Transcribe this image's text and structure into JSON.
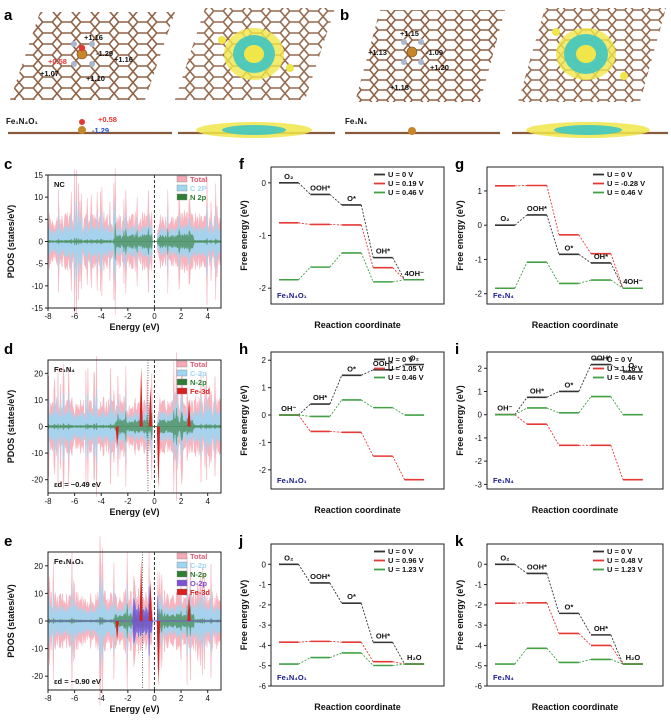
{
  "panels": {
    "a": {
      "letter": "a",
      "structure_label": "Fe₁N₄O₁",
      "charges": [
        "+1.16",
        "-1.29",
        "+1.16",
        "+0.58",
        "+1.07",
        "+1.10"
      ],
      "side_charges": [
        "+0.58",
        "-1.29"
      ]
    },
    "b": {
      "letter": "b",
      "structure_label": "Fe₁N₄",
      "charges": [
        "+1.15",
        "+1.13",
        "-1.09",
        "+1.20",
        "+1.18"
      ]
    }
  },
  "colors": {
    "total": "#f6a8b4",
    "c2p": "#9fd6f2",
    "n2p": "#2e7d32",
    "o2p": "#7b4fd6",
    "fe3d": "#d92020",
    "u0": "#333333",
    "u1": "#e53935",
    "u2": "#43a047",
    "atomC": "#8a5a3c",
    "atomN": "#a9b7cf",
    "atomFe": "#c8862a",
    "atomO": "#e53935",
    "density_yellow": "#f0e64a",
    "density_cyan": "#3fc7c2"
  },
  "chart_data": [
    {
      "id": "c",
      "type": "area",
      "letter": "c",
      "system": "NC",
      "legend": [
        "Total",
        "C 2P",
        "N 2p"
      ],
      "xlabel": "Energy (eV)",
      "ylabel": "PDOS (states/eV)",
      "xlim": [
        -8,
        5
      ],
      "ylim": [
        -15,
        15
      ],
      "xticks": [
        -8,
        -6,
        -4,
        -2,
        0,
        2,
        4
      ],
      "yticks": [
        15,
        10,
        5,
        0,
        -5,
        -10,
        -15
      ],
      "note": ""
    },
    {
      "id": "d",
      "type": "area",
      "letter": "d",
      "system": "Fe₁N₄",
      "legend": [
        "Total",
        "C-2p",
        "N-2p",
        "Fe-3d"
      ],
      "xlabel": "Energy (eV)",
      "ylabel": "PDOS (states/eV)",
      "xlim": [
        -8,
        5
      ],
      "ylim": [
        -25,
        25
      ],
      "xticks": [
        -8,
        -6,
        -4,
        -2,
        0,
        2,
        4
      ],
      "yticks": [
        20,
        10,
        0,
        -10,
        -20
      ],
      "note": "εd = −0.49 eV",
      "d_band_center": -0.49
    },
    {
      "id": "e",
      "type": "area",
      "letter": "e",
      "system": "Fe₁N₄O₁",
      "legend": [
        "Total",
        "C-2p",
        "N-2p",
        "O-2p",
        "Fe-3d"
      ],
      "xlabel": "Energy (eV)",
      "ylabel": "PDOS (states/eV)",
      "xlim": [
        -8,
        5
      ],
      "ylim": [
        -25,
        25
      ],
      "xticks": [
        -8,
        -6,
        -4,
        -2,
        0,
        2,
        4
      ],
      "yticks": [
        20,
        10,
        0,
        -10,
        -20
      ],
      "note": "εd = −0.90 eV",
      "d_band_center": -0.9
    },
    {
      "id": "f",
      "type": "line",
      "letter": "f",
      "system": "Fe₁N₄O₁",
      "xlabel": "Reaction coordinate",
      "ylabel": "Free energy (eV)",
      "ylim": [
        -2.3,
        0.3
      ],
      "yticks": [
        0,
        -1,
        -2
      ],
      "legend": [
        "U = 0 V",
        "U = 0.19 V",
        "U = 0.46 V"
      ],
      "labels": [
        "O₂",
        "OOH*",
        "O*",
        "OH*",
        "4OH⁻"
      ],
      "series": [
        {
          "name": "U = 0 V",
          "values": [
            0.0,
            -0.22,
            -0.42,
            -1.42,
            -1.84
          ]
        },
        {
          "name": "U = 0.19 V",
          "values": [
            -0.76,
            -0.79,
            -0.8,
            -1.61,
            -1.84
          ]
        },
        {
          "name": "U = 0.46 V",
          "values": [
            -1.84,
            -1.6,
            -1.33,
            -1.88,
            -1.84
          ]
        }
      ]
    },
    {
      "id": "g",
      "type": "line",
      "letter": "g",
      "system": "Fe₁N₄",
      "xlabel": "Reaction coordinate",
      "ylabel": "Free energy (eV)",
      "ylim": [
        -2.3,
        1.7
      ],
      "yticks": [
        1,
        0,
        -1,
        -2
      ],
      "legend": [
        "U = 0 V",
        "U = -0.28 V",
        "U = 0.46 V"
      ],
      "labels": [
        "O₂",
        "OOH*",
        "O*",
        "OH*",
        "4OH⁻"
      ],
      "series": [
        {
          "name": "U = 0 V",
          "values": [
            0.0,
            0.3,
            -0.85,
            -1.1,
            -1.84
          ]
        },
        {
          "name": "U = -0.28 V",
          "values": [
            1.15,
            1.16,
            -0.28,
            -0.83,
            -1.84
          ]
        },
        {
          "name": "U = 0.46 V",
          "values": [
            -1.84,
            -1.08,
            -1.7,
            -1.6,
            -1.84
          ]
        }
      ]
    },
    {
      "id": "h",
      "type": "line",
      "letter": "h",
      "system": "Fe₁N₄O₁",
      "xlabel": "Reaction coordinate",
      "ylabel": "Free energy (eV)",
      "ylim": [
        -2.7,
        2.3
      ],
      "yticks": [
        2,
        1,
        0,
        -1,
        -2
      ],
      "legend": [
        "U = 0 V",
        "U = 1.05 V",
        "U = 0.46 V"
      ],
      "labels": [
        "OH⁻",
        "OH*",
        "O*",
        "OOH*",
        "O₂"
      ],
      "series": [
        {
          "name": "U = 0 V",
          "values": [
            0.0,
            0.4,
            1.45,
            1.65,
            1.84
          ]
        },
        {
          "name": "U = 1.05 V",
          "values": [
            0.0,
            -0.6,
            -0.63,
            -1.5,
            -2.36
          ]
        },
        {
          "name": "U = 0.46 V",
          "values": [
            0.0,
            -0.05,
            0.55,
            0.27,
            0.0
          ]
        }
      ]
    },
    {
      "id": "i",
      "type": "line",
      "letter": "i",
      "system": "Fe₁N₄",
      "xlabel": "Reaction coordinate",
      "ylabel": "Free energy (eV)",
      "ylim": [
        -3.2,
        2.7
      ],
      "yticks": [
        2,
        1,
        0,
        -1,
        -2,
        -3
      ],
      "legend": [
        "U = 0 V",
        "U = 1.16 V",
        "U = 0.46 V"
      ],
      "labels": [
        "OH⁻",
        "OH*",
        "O*",
        "OOH*",
        "O₂"
      ],
      "series": [
        {
          "name": "U = 0 V",
          "values": [
            0.0,
            0.75,
            1.0,
            2.16,
            1.84
          ]
        },
        {
          "name": "U = 1.16 V",
          "values": [
            0.0,
            -0.41,
            -1.32,
            -1.32,
            -2.8
          ]
        },
        {
          "name": "U = 0.46 V",
          "values": [
            0.0,
            0.29,
            0.08,
            0.78,
            0.0
          ]
        }
      ]
    },
    {
      "id": "j",
      "type": "line",
      "letter": "j",
      "system": "Fe₁N₄O₁",
      "xlabel": "Reaction coordinate",
      "ylabel": "Free energy (eV)",
      "ylim": [
        -6,
        1
      ],
      "yticks": [
        0,
        -1,
        -2,
        -3,
        -4,
        -5,
        -6
      ],
      "legend": [
        "U = 0 V",
        "U = 0.96 V",
        "U = 1.23 V"
      ],
      "labels": [
        "O₂",
        "OOH*",
        "O*",
        "OH*",
        "H₂O"
      ],
      "series": [
        {
          "name": "U = 0 V",
          "values": [
            0.0,
            -0.92,
            -1.92,
            -3.85,
            -4.92
          ]
        },
        {
          "name": "U = 0.96 V",
          "values": [
            -3.84,
            -3.8,
            -3.84,
            -4.8,
            -4.92
          ]
        },
        {
          "name": "U = 1.23 V",
          "values": [
            -4.92,
            -4.6,
            -4.37,
            -4.99,
            -4.92
          ]
        }
      ]
    },
    {
      "id": "k",
      "type": "line",
      "letter": "k",
      "system": "Fe₁N₄",
      "xlabel": "Reaction coordinate",
      "ylabel": "Free energy (eV)",
      "ylim": [
        -6,
        1
      ],
      "yticks": [
        0,
        -1,
        -2,
        -3,
        -4,
        -5,
        -6
      ],
      "legend": [
        "U = 0 V",
        "U = 0.48 V",
        "U = 1.23 V"
      ],
      "labels": [
        "O₂",
        "OOH*",
        "O*",
        "OH*",
        "H₂O"
      ],
      "series": [
        {
          "name": "U = 0 V",
          "values": [
            0.0,
            -0.45,
            -2.42,
            -3.48,
            -4.92
          ]
        },
        {
          "name": "U = 0.48 V",
          "values": [
            -1.92,
            -1.9,
            -3.41,
            -4.0,
            -4.92
          ]
        },
        {
          "name": "U = 1.23 V",
          "values": [
            -4.92,
            -4.14,
            -4.84,
            -4.69,
            -4.92
          ]
        }
      ]
    }
  ]
}
